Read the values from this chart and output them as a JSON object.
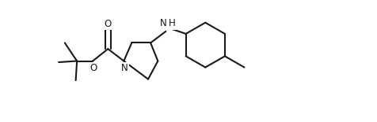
{
  "background_color": "#ffffff",
  "line_color": "#1a1a1a",
  "line_width": 1.5,
  "text_color": "#1a1a1a",
  "font_size": 8.5,
  "fig_width": 4.77,
  "fig_height": 1.55,
  "dpi": 100,
  "xlim": [
    0,
    24
  ],
  "ylim": [
    0,
    10
  ]
}
